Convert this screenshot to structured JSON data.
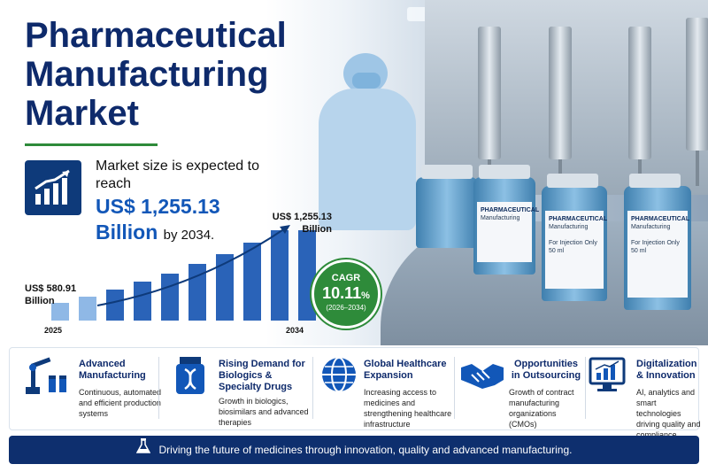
{
  "title": "Pharmaceutical Manufacturing Market",
  "market": {
    "intro": "Market size is expected to reach",
    "value": "US$ 1,255.13",
    "value_line2": "Billion",
    "by": "by 2034."
  },
  "chart_data": {
    "type": "bar",
    "categories": [
      "2025",
      "",
      "",
      "",
      "",
      "",
      "",
      "",
      "",
      "2034"
    ],
    "values": [
      580.91,
      639.6,
      704.3,
      775.5,
      853.8,
      940.1,
      1035.1,
      1139.7,
      1254.8,
      1255.13
    ],
    "start_label": "US$ 580.91 Billion",
    "end_label": "US$ 1,255.13 Billion",
    "x_start": "2025",
    "x_end": "2034"
  },
  "cagr": {
    "label": "CAGR",
    "value": "10.11",
    "unit": "%",
    "period": "(2026–2034)"
  },
  "features": [
    {
      "icon": "robot-arm-icon",
      "title": "Advanced Manufacturing",
      "desc": "Continuous, automated and efficient production systems"
    },
    {
      "icon": "medicine-bottle-dna-icon",
      "title": "Rising Demand for Biologics & Specialty Drugs",
      "desc": "Growth in biologics, biosimilars and advanced therapies"
    },
    {
      "icon": "globe-icon",
      "title": "Global Healthcare Expansion",
      "desc": "Increasing access to medicines and strengthening healthcare infrastructure"
    },
    {
      "icon": "handshake-icon",
      "title": "Opportunities in Outsourcing",
      "desc": "Growth of contract manufacturing organizations (CMOs)"
    },
    {
      "icon": "monitor-chart-icon",
      "title": "Digitalization & Innovation",
      "desc": "AI, analytics and smart technologies driving quality and compliance"
    }
  ],
  "footer": {
    "icon": "flask-icon",
    "text": "Driving the future of medicines through innovation, quality and advanced manufacturing."
  },
  "vial_label": {
    "title": "PHARMACEUTICAL",
    "sub": "Manufacturing",
    "note": "For Injection Only",
    "volume": "50 ml"
  },
  "colors": {
    "navy": "#0e2a6b",
    "accent_blue": "#1257b8",
    "bar_blue": "#2a63b8",
    "green": "#2e8b3a"
  }
}
